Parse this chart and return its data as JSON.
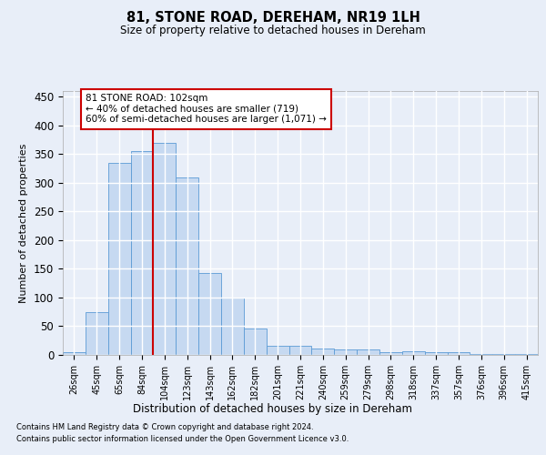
{
  "title": "81, STONE ROAD, DEREHAM, NR19 1LH",
  "subtitle": "Size of property relative to detached houses in Dereham",
  "xlabel": "Distribution of detached houses by size in Dereham",
  "ylabel": "Number of detached properties",
  "categories": [
    "26sqm",
    "45sqm",
    "65sqm",
    "84sqm",
    "104sqm",
    "123sqm",
    "143sqm",
    "162sqm",
    "182sqm",
    "201sqm",
    "221sqm",
    "240sqm",
    "259sqm",
    "279sqm",
    "298sqm",
    "318sqm",
    "337sqm",
    "357sqm",
    "376sqm",
    "396sqm",
    "415sqm"
  ],
  "values": [
    5,
    75,
    335,
    355,
    370,
    310,
    143,
    100,
    46,
    16,
    16,
    11,
    10,
    9,
    5,
    6,
    5,
    5,
    2,
    2,
    2
  ],
  "bar_color": "#c6d9f1",
  "bar_edge_color": "#5b9bd5",
  "background_color": "#e8eef8",
  "grid_color": "#ffffff",
  "property_line_color": "#cc0000",
  "property_line_index": 4,
  "annotation_line1": "81 STONE ROAD: 102sqm",
  "annotation_line2": "← 40% of detached houses are smaller (719)",
  "annotation_line3": "60% of semi-detached houses are larger (1,071) →",
  "annotation_box_facecolor": "#ffffff",
  "annotation_box_edgecolor": "#cc0000",
  "ylim": [
    0,
    460
  ],
  "yticks": [
    0,
    50,
    100,
    150,
    200,
    250,
    300,
    350,
    400,
    450
  ],
  "fig_facecolor": "#e8eef8",
  "footnote1": "Contains HM Land Registry data © Crown copyright and database right 2024.",
  "footnote2": "Contains public sector information licensed under the Open Government Licence v3.0."
}
